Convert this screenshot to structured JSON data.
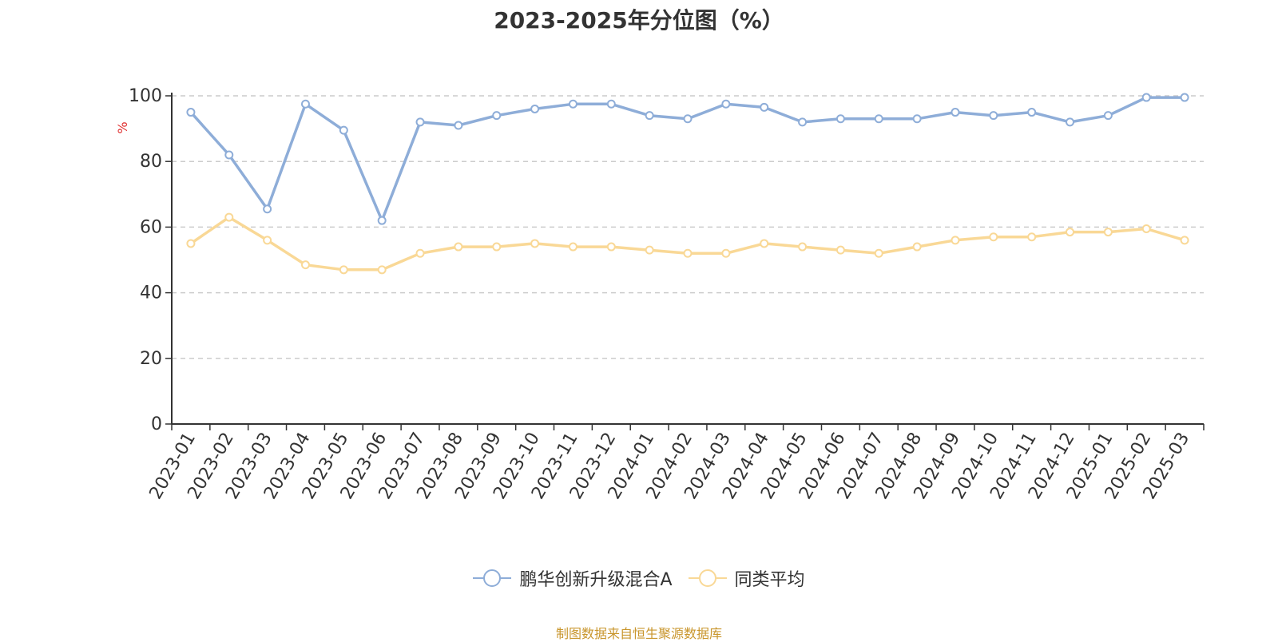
{
  "chart_data": {
    "type": "line",
    "title": "2023-2025年分位图（%）",
    "ylabel": "%",
    "xlabel": "",
    "ylim": [
      0,
      100
    ],
    "yticks": [
      0,
      20,
      40,
      60,
      80,
      100
    ],
    "grid": true,
    "legend_position": "bottom-center",
    "categories": [
      "2023-01",
      "2023-02",
      "2023-03",
      "2023-04",
      "2023-05",
      "2023-06",
      "2023-07",
      "2023-08",
      "2023-09",
      "2023-10",
      "2023-11",
      "2023-12",
      "2024-01",
      "2024-02",
      "2024-03",
      "2024-04",
      "2024-05",
      "2024-06",
      "2024-07",
      "2024-08",
      "2024-09",
      "2024-10",
      "2024-11",
      "2024-12",
      "2025-01",
      "2025-02",
      "2025-03"
    ],
    "series": [
      {
        "name": "鹏华创新升级混合A",
        "color": "#8eadd8",
        "values": [
          95,
          82,
          65.5,
          97.5,
          89.5,
          62,
          92,
          91,
          94,
          96,
          97.5,
          97.5,
          94,
          93,
          97.5,
          96.5,
          92,
          93,
          93,
          93,
          95,
          94,
          95,
          92,
          94,
          99.5,
          99.5
        ]
      },
      {
        "name": "同类平均",
        "color": "#f9d896",
        "values": [
          55,
          63,
          56,
          48.5,
          47,
          47,
          52,
          54,
          54,
          55,
          54,
          54,
          53,
          52,
          52,
          55,
          54,
          53,
          52,
          54,
          56,
          57,
          57,
          58.5,
          58.5,
          59.5,
          56
        ]
      }
    ]
  },
  "source_note": "制图数据来自恒生聚源数据库"
}
